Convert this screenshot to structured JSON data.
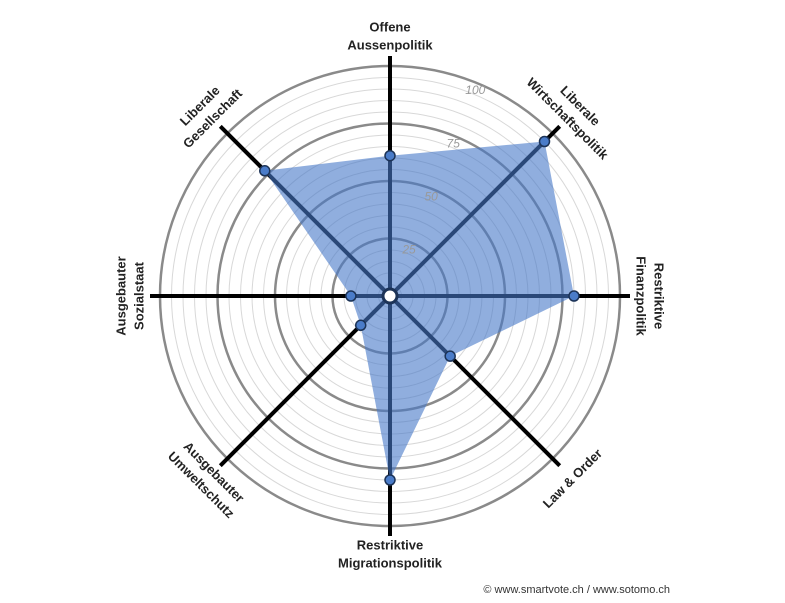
{
  "chart_data": {
    "type": "radar",
    "categories": [
      [
        "Offene",
        "Aussenpolitik"
      ],
      [
        "Liberale",
        "Wirtschaftspolitik"
      ],
      [
        "Restriktive",
        "Finanzpolitik"
      ],
      [
        "Law & Order"
      ],
      [
        "Restriktive",
        "Migrationspolitik"
      ],
      [
        "Ausgebauter",
        "Umweltschutz"
      ],
      [
        "Ausgebauter",
        "Sozialstaat"
      ],
      [
        "Liberale",
        "Gesellschaft"
      ]
    ],
    "values": [
      61,
      95,
      80,
      37,
      80,
      18,
      17,
      77
    ],
    "color": "#4a7cc9",
    "rlim": [
      0,
      100
    ],
    "rticks": [
      25,
      50,
      75,
      100
    ],
    "minor_grid": [
      5,
      10,
      15,
      20,
      30,
      35,
      40,
      45,
      55,
      60,
      65,
      70,
      80,
      85,
      90,
      95
    ],
    "source": "© www.smartvote.ch / www.sotomo.ch"
  }
}
